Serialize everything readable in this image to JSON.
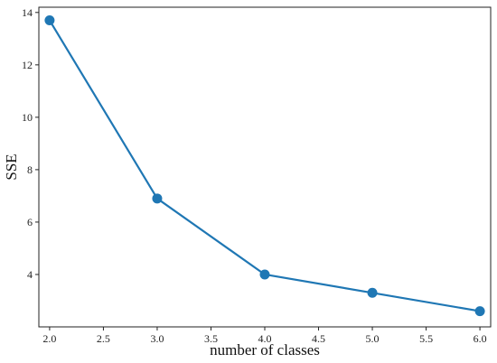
{
  "chart_data": {
    "type": "line",
    "title": "",
    "xlabel": "number of classes",
    "ylabel": "SSE",
    "xlim": [
      1.9,
      6.1
    ],
    "ylim": [
      2.0,
      14.2
    ],
    "x_ticks": [
      2.0,
      2.5,
      3.0,
      3.5,
      4.0,
      4.5,
      5.0,
      5.5,
      6.0
    ],
    "x_tick_labels": [
      "2.0",
      "2.5",
      "3.0",
      "3.5",
      "4.0",
      "4.5",
      "5.0",
      "5.5",
      "6.0"
    ],
    "y_ticks": [
      4,
      6,
      8,
      10,
      12,
      14
    ],
    "y_tick_labels": [
      "4",
      "6",
      "8",
      "10",
      "12",
      "14"
    ],
    "grid": false,
    "legend": "none",
    "series": [
      {
        "color": "#1f77b4",
        "marker": "circle",
        "x": [
          2.0,
          3.0,
          4.0,
          5.0,
          6.0
        ],
        "y": [
          13.7,
          6.9,
          4.0,
          3.3,
          2.6
        ]
      }
    ]
  }
}
